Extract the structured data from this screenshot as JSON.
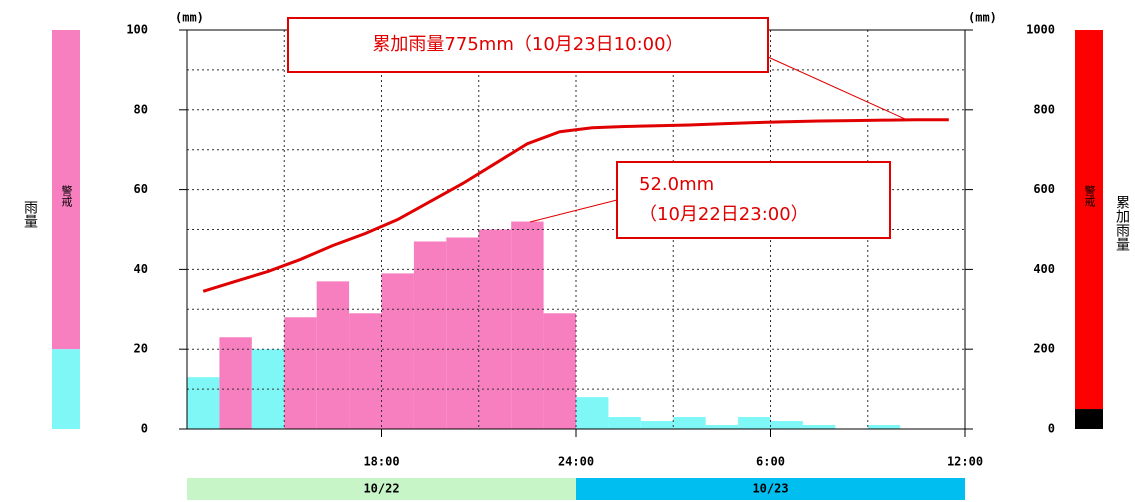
{
  "chart_data": {
    "type": "combo",
    "y_unit": "(mm)",
    "y2_unit": "(mm)",
    "y_label": "雨量",
    "y2_label": "累加雨量",
    "xlim": [
      12,
      36
    ],
    "xticks": [
      {
        "value": 18,
        "label": "18:00"
      },
      {
        "value": 24,
        "label": "24:00"
      },
      {
        "value": 30,
        "label": "6:00"
      },
      {
        "value": 36,
        "label": "12:00"
      }
    ],
    "ylim": [
      0,
      100
    ],
    "yticks": [
      0,
      20,
      40,
      60,
      80,
      100
    ],
    "y2lim": [
      0,
      1000
    ],
    "y2ticks": [
      0,
      200,
      400,
      600,
      800,
      1000
    ],
    "grid": true,
    "date_bands": [
      {
        "label": "10/22",
        "from": 12,
        "to": 24,
        "color": "#c8f5c8"
      },
      {
        "label": "10/23",
        "from": 24,
        "to": 36,
        "color": "#00bff0"
      }
    ],
    "gauges": [
      {
        "axis": "y",
        "label": "警戒",
        "threshold": 20,
        "upper_color": "#f77fbf",
        "lower_color": "#7ff7f7"
      },
      {
        "axis": "y2",
        "label": "警戒",
        "threshold": 50,
        "upper_color": "#ff0000",
        "lower_color": "#000000"
      }
    ],
    "x": [
      12.5,
      13.5,
      14.5,
      15.5,
      16.5,
      17.5,
      18.5,
      19.5,
      20.5,
      21.5,
      22.5,
      23.5,
      24.5,
      25.5,
      26.5,
      27.5,
      28.5,
      29.5,
      30.5,
      31.5,
      32.5,
      33.5,
      34.5,
      35.5
    ],
    "series": [
      {
        "type": "bar",
        "axis": "y",
        "values": [
          13,
          23,
          20,
          28,
          37,
          29,
          39,
          47,
          48,
          50,
          52,
          29,
          8,
          3,
          2,
          3,
          1,
          3,
          2,
          1,
          0,
          1,
          0,
          0
        ],
        "colors": [
          "#7ff7f7",
          "#f77fbf",
          "#7ff7f7",
          "#f77fbf",
          "#f77fbf",
          "#f77fbf",
          "#f77fbf",
          "#f77fbf",
          "#f77fbf",
          "#f77fbf",
          "#f77fbf",
          "#f77fbf",
          "#7ff7f7",
          "#7ff7f7",
          "#7ff7f7",
          "#7ff7f7",
          "#7ff7f7",
          "#7ff7f7",
          "#7ff7f7",
          "#7ff7f7",
          "#7ff7f7",
          "#7ff7f7",
          "#7ff7f7",
          "#7ff7f7"
        ]
      },
      {
        "type": "line",
        "axis": "y2",
        "color": "#e00000",
        "values": [
          345,
          370,
          395,
          425,
          460,
          490,
          525,
          570,
          615,
          665,
          715,
          745,
          755,
          758,
          760,
          762,
          765,
          768,
          770,
          772,
          773,
          774,
          775,
          775
        ]
      }
    ],
    "annotations": [
      {
        "lines": [
          "累加雨量775mm（10月23日10:00）"
        ]
      },
      {
        "lines": [
          "52.0mm",
          "（10月22日23:00）"
        ]
      }
    ]
  }
}
